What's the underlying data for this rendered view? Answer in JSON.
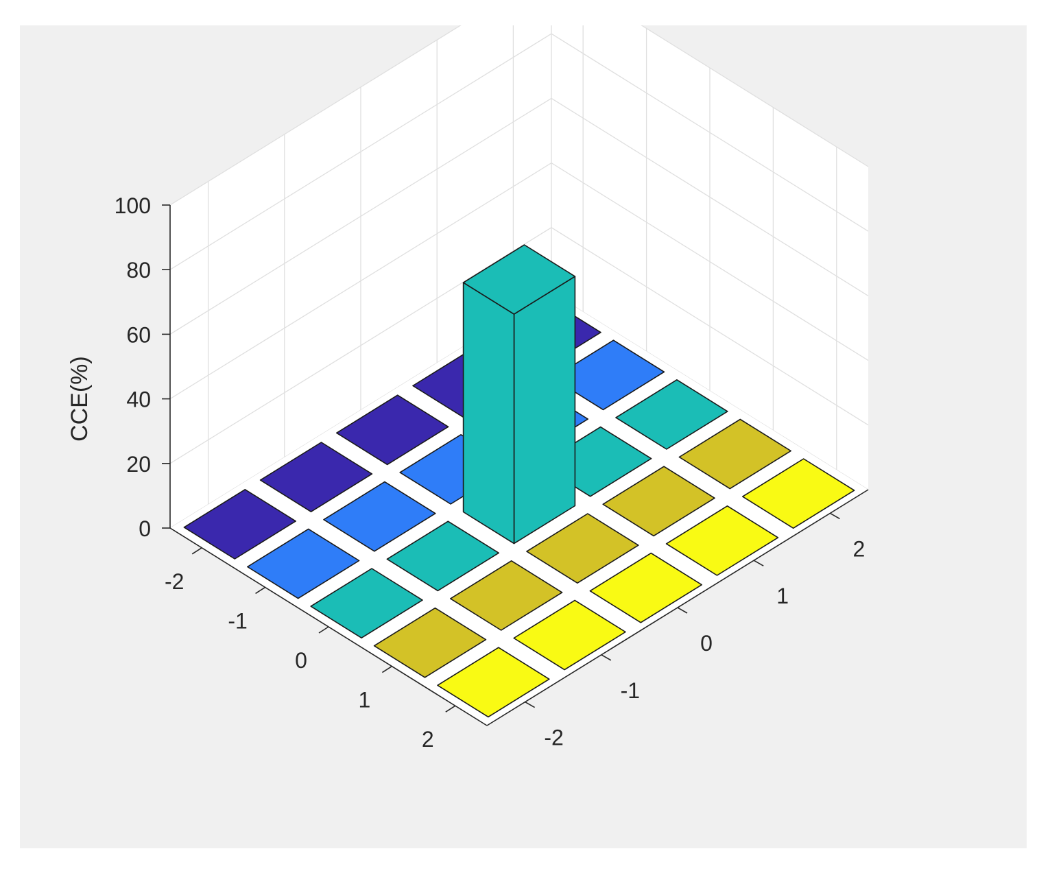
{
  "chart_data": {
    "type": "bar3",
    "title": "",
    "xlabel": "",
    "ylabel": "",
    "zlabel": "CCE(%)",
    "x_ticks": [
      -2,
      -1,
      0,
      1,
      2
    ],
    "y_ticks": [
      -2,
      -1,
      0,
      1,
      2
    ],
    "z_ticks": [
      0,
      20,
      40,
      60,
      80,
      100
    ],
    "zlim": [
      0,
      100
    ],
    "grid": true,
    "colormap": [
      "#3f26a8",
      "#2f7df8",
      "#1bbdb6",
      "#d3c227",
      "#f9fa14"
    ],
    "bars": [
      {
        "x": -2,
        "y": -2,
        "z": 0,
        "color": "#3a28ad"
      },
      {
        "x": -2,
        "y": -1,
        "z": 0,
        "color": "#3a28ad"
      },
      {
        "x": -2,
        "y": 0,
        "z": 0,
        "color": "#3a28ad"
      },
      {
        "x": -2,
        "y": 1,
        "z": 0,
        "color": "#3a28ad"
      },
      {
        "x": -2,
        "y": 2,
        "z": 0,
        "color": "#3a28ad"
      },
      {
        "x": -1,
        "y": -2,
        "z": 0,
        "color": "#2f7df8"
      },
      {
        "x": -1,
        "y": -1,
        "z": 0,
        "color": "#2f7df8"
      },
      {
        "x": -1,
        "y": 0,
        "z": 0,
        "color": "#2f7df8"
      },
      {
        "x": -1,
        "y": 1,
        "z": 0,
        "color": "#2f7df8"
      },
      {
        "x": -1,
        "y": 2,
        "z": 0,
        "color": "#2f7df8"
      },
      {
        "x": 0,
        "y": -2,
        "z": 0,
        "color": "#1bbdb6"
      },
      {
        "x": 0,
        "y": -1,
        "z": 0,
        "color": "#1bbdb6"
      },
      {
        "x": 0,
        "y": 0,
        "z": 71,
        "color": "#1bbdb6"
      },
      {
        "x": 0,
        "y": 1,
        "z": 0,
        "color": "#1bbdb6"
      },
      {
        "x": 0,
        "y": 2,
        "z": 0,
        "color": "#1bbdb6"
      },
      {
        "x": 1,
        "y": -2,
        "z": 0,
        "color": "#d3c227"
      },
      {
        "x": 1,
        "y": -1,
        "z": 0,
        "color": "#d3c227"
      },
      {
        "x": 1,
        "y": 0,
        "z": 0,
        "color": "#d3c227"
      },
      {
        "x": 1,
        "y": 1,
        "z": 0,
        "color": "#d3c227"
      },
      {
        "x": 1,
        "y": 2,
        "z": 0,
        "color": "#d3c227"
      },
      {
        "x": 2,
        "y": -2,
        "z": 0,
        "color": "#f9fa14"
      },
      {
        "x": 2,
        "y": -1,
        "z": 0,
        "color": "#f9fa14"
      },
      {
        "x": 2,
        "y": 0,
        "z": 0,
        "color": "#f9fa14"
      },
      {
        "x": 2,
        "y": 1,
        "z": 0,
        "color": "#f9fa14"
      },
      {
        "x": 2,
        "y": 2,
        "z": 0,
        "color": "#f9fa14"
      }
    ]
  }
}
